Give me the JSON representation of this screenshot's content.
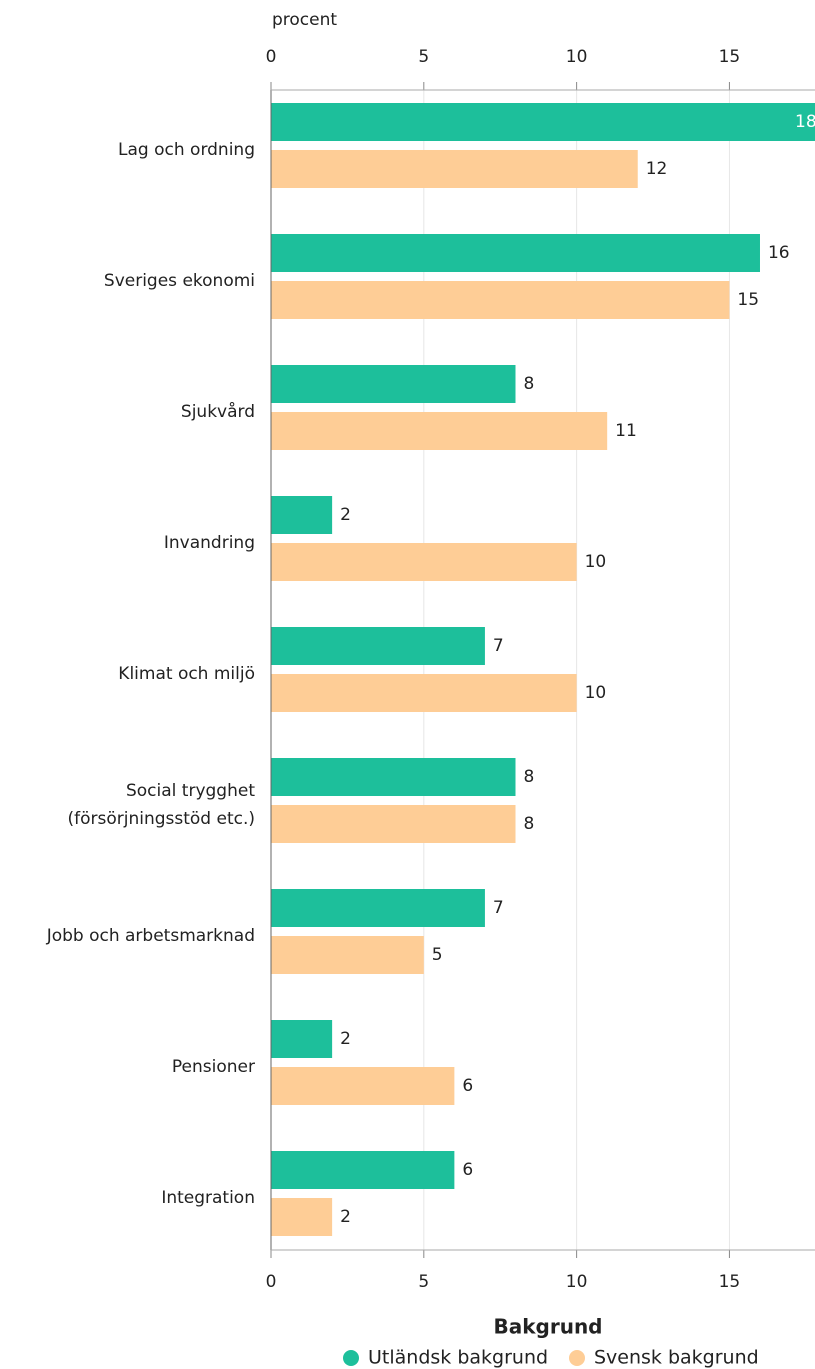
{
  "chart_data": {
    "type": "hbar",
    "x_label": "procent",
    "categories": [
      "Lag och ordning",
      "Sveriges ekonomi",
      "Sjukvård",
      "Invandring",
      "Klimat och miljö",
      "Social trygghet\n(försörjningsstöd etc.)",
      "Jobb och arbetsmarknad",
      "Pensioner",
      "Integration"
    ],
    "series": [
      {
        "name": "Utländsk bakgrund",
        "color": "#1dbf9b",
        "values": [
          18,
          16,
          8,
          2,
          7,
          8,
          7,
          2,
          6
        ]
      },
      {
        "name": "Svensk bakgrund",
        "color": "#fecd96",
        "values": [
          12,
          15,
          11,
          10,
          10,
          8,
          5,
          6,
          2
        ]
      }
    ],
    "xlim": [
      0,
      17.8
    ],
    "xticks": [
      0,
      5,
      10,
      15
    ],
    "grid": true,
    "legend_title": "Bakgrund"
  }
}
